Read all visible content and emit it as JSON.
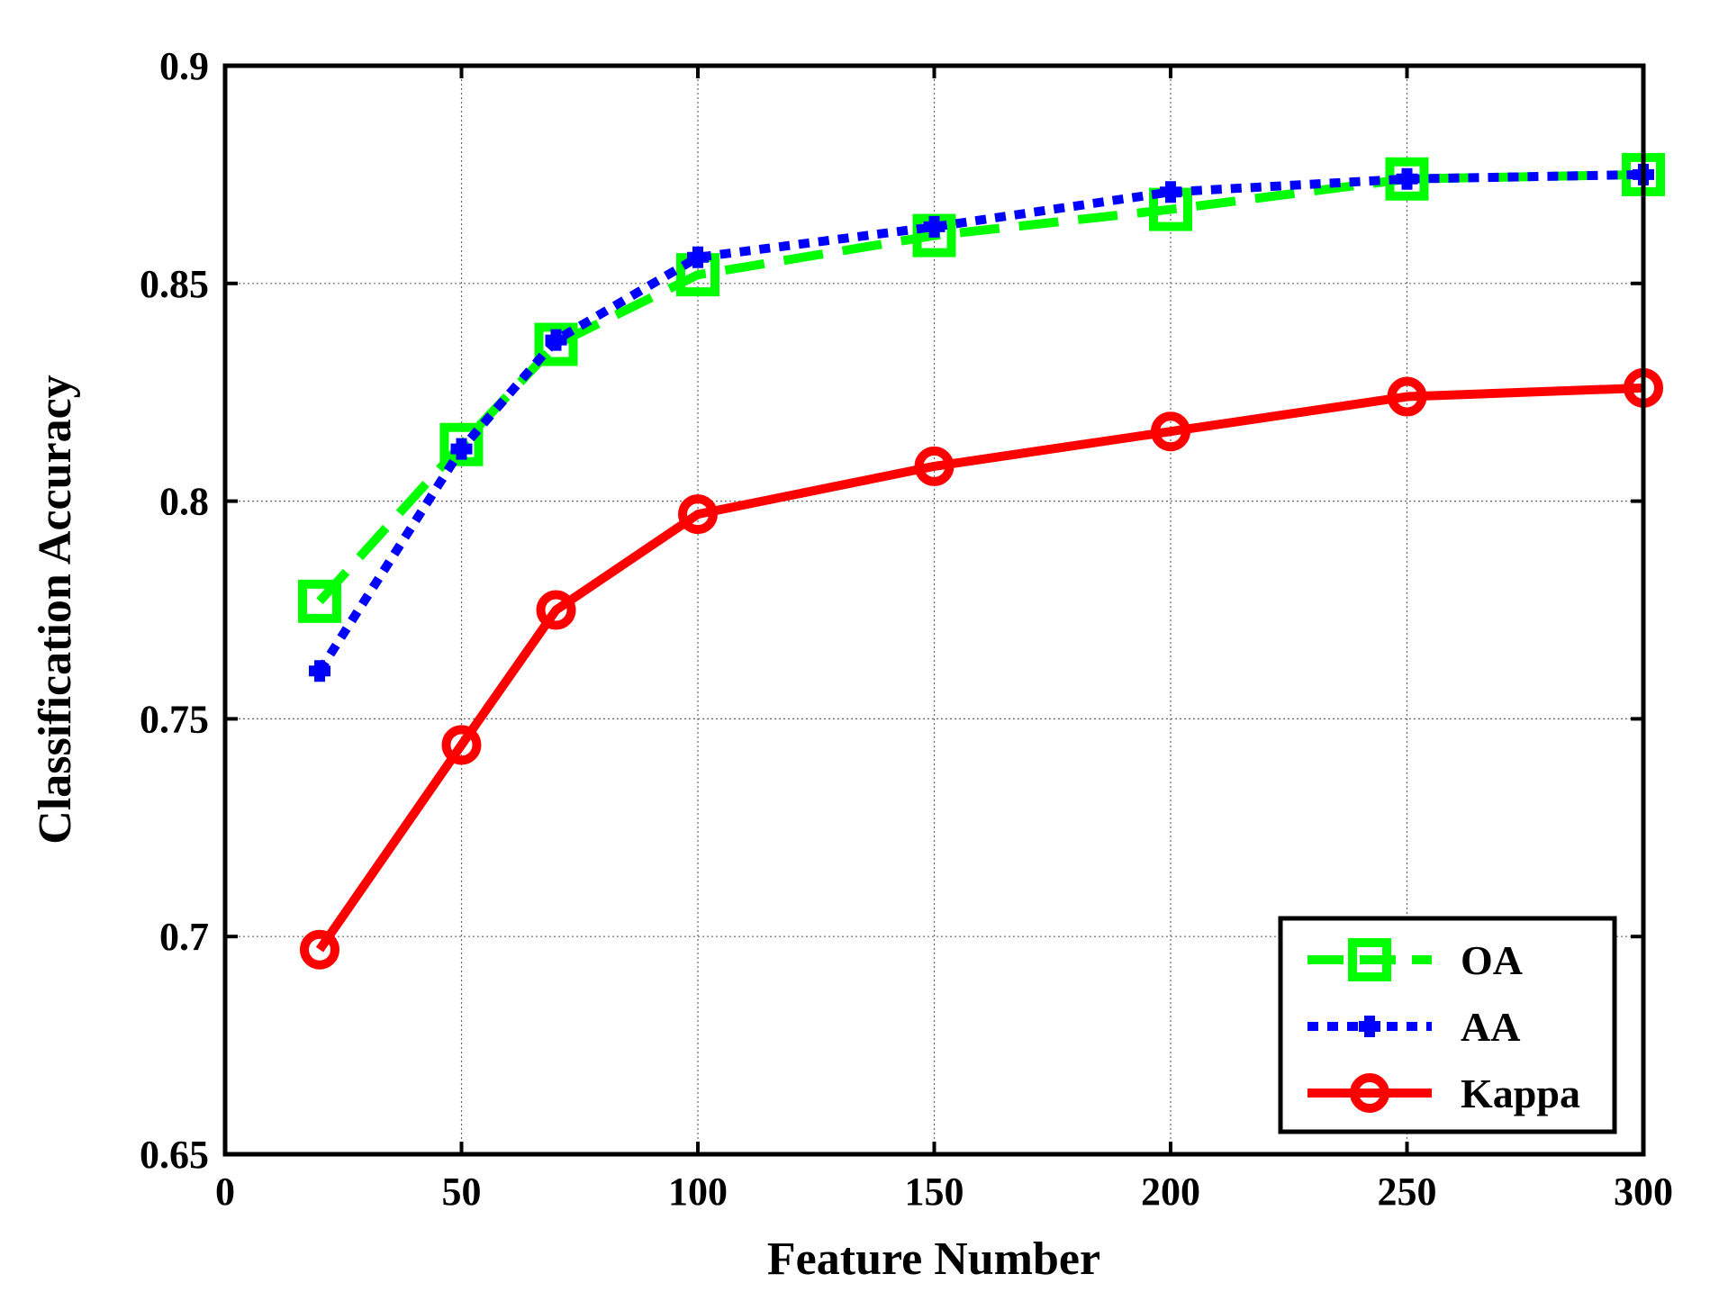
{
  "chart_data": {
    "type": "line",
    "title": "",
    "xlabel": "Feature Number",
    "ylabel": "Classification Accuracy",
    "xlim": [
      0,
      300
    ],
    "ylim": [
      0.65,
      0.9
    ],
    "xticks": [
      0,
      50,
      100,
      150,
      200,
      250,
      300
    ],
    "xtick_labels": [
      "0",
      "50",
      "100",
      "150",
      "200",
      "250",
      "300"
    ],
    "yticks": [
      0.65,
      0.7,
      0.75,
      0.8,
      0.85,
      0.9
    ],
    "ytick_labels": [
      "0.65",
      "0.7",
      "0.75",
      "0.8",
      "0.85",
      "0.9"
    ],
    "grid": true,
    "legend_position": "bottom-right",
    "x": [
      20,
      50,
      70,
      100,
      150,
      200,
      250,
      300
    ],
    "series": [
      {
        "name": "OA",
        "color": "#00ff00",
        "line_style": "dashed",
        "marker": "square",
        "values": [
          0.777,
          0.813,
          0.836,
          0.852,
          0.861,
          0.867,
          0.874,
          0.875
        ]
      },
      {
        "name": "AA",
        "color": "#0000ff",
        "line_style": "dotted",
        "marker": "plus",
        "values": [
          0.761,
          0.812,
          0.837,
          0.856,
          0.863,
          0.871,
          0.874,
          0.875
        ]
      },
      {
        "name": "Kappa",
        "color": "#ff0000",
        "line_style": "solid",
        "marker": "circle",
        "values": [
          0.697,
          0.744,
          0.775,
          0.797,
          0.808,
          0.816,
          0.824,
          0.826
        ]
      }
    ]
  }
}
